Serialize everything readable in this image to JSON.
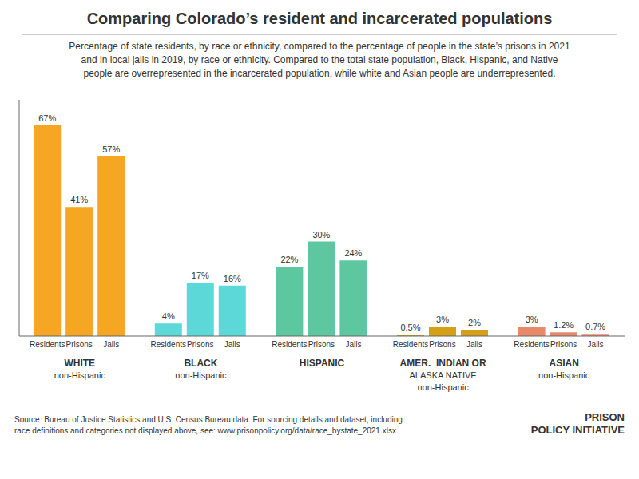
{
  "chart_data": {
    "type": "bar",
    "title": "Comparing Colorado’s resident and incarcerated populations",
    "subtitle": "Percentage of state residents, by race or ethnicity, compared to the percentage of people in the state’s prisons in 2021\nand in local jails in 2019, by race or ethnicity. Compared to the total state population, Black, Hispanic, and Native\npeople are overrepresented in the incarcerated population, while white and Asian people are underrepresented.",
    "source": "Source: Bureau of Justice Statistics and U.S. Census Bureau data. For sourcing details and dataset, including\nrace definitions and categories not displayed above, see: www.prisonpolicy.org/data/race_bystate_2021.xlsx.",
    "annotation": "PRISON\nPOLICY INITIATIVE",
    "categories": [
      "WHITE\nnon-Hispanic",
      "BLACK\nnon-Hispanic",
      "HISPANIC",
      "AMER.  INDIAN OR\nALASKA NATIVE\nnon-Hispanic",
      "ASIAN\nnon-Hispanic"
    ],
    "series": [
      {
        "name": "Residents",
        "values": [
          67,
          4,
          22,
          0.5,
          3
        ],
        "value_labels": [
          "67%",
          "4%",
          "22%",
          "0.5%",
          "3%"
        ],
        "colors": [
          "#f5a623",
          "#5dd8d8",
          "#5dc8a0",
          "#d4a017",
          "#e8896a"
        ]
      },
      {
        "name": "Prisons",
        "values": [
          41,
          17,
          30,
          3,
          1.2
        ],
        "value_labels": [
          "41%",
          "17%",
          "30%",
          "3%",
          "1.2%"
        ],
        "colors": [
          "#f5a623",
          "#5dd8d8",
          "#5dc8a0",
          "#d4a017",
          "#e8896a"
        ]
      },
      {
        "name": "Jails",
        "values": [
          57,
          16,
          24,
          2,
          0.7
        ],
        "value_labels": [
          "57%",
          "16%",
          "24%",
          "2%",
          "0.7%"
        ],
        "colors": [
          "#f5a623",
          "#5dd8d8",
          "#5dc8a0",
          "#d4a017",
          "#e8896a"
        ]
      }
    ],
    "ylim": [
      0,
      75
    ],
    "data_labels": true,
    "tick_labels": "x"
  }
}
